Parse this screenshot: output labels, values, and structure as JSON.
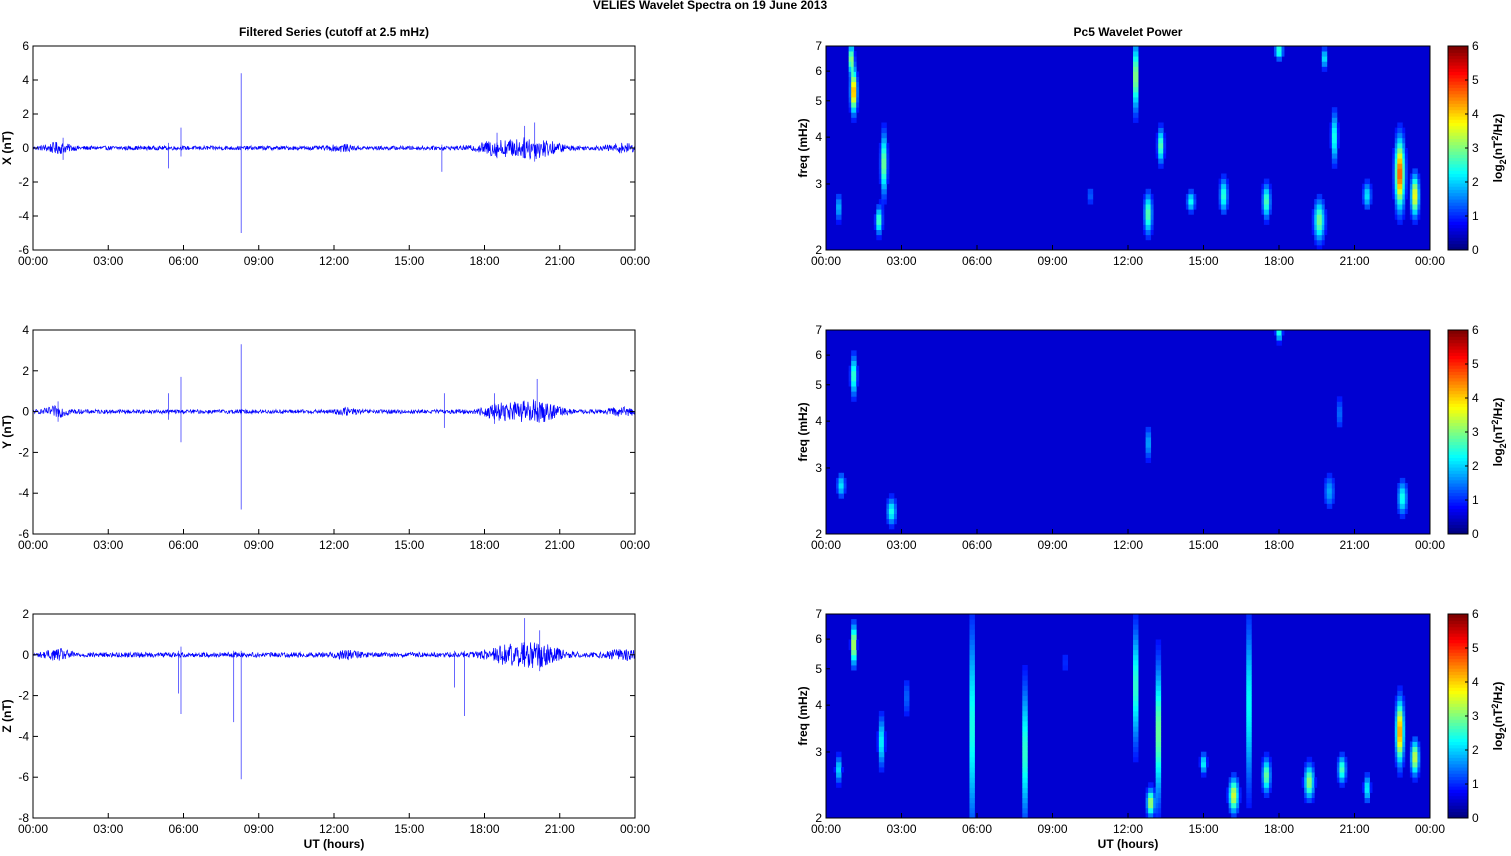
{
  "figure": {
    "title": "VELIES Wavelet Spectra on 19 June      2013",
    "colors": {
      "trace": "#0000ff",
      "axis": "#000000",
      "background": "#ffffff"
    }
  },
  "chart_data": [
    {
      "type": "line",
      "title": "Filtered Series (cutoff at 2.5 mHz)",
      "xlabel": "",
      "ylabel": "X (nT)",
      "x_ticks": [
        "00:00",
        "03:00",
        "06:00",
        "09:00",
        "12:00",
        "15:00",
        "18:00",
        "21:00",
        "00:00"
      ],
      "x_range_hours": [
        0,
        24
      ],
      "ylim": [
        -6,
        6
      ],
      "y_ticks": [
        -6,
        -4,
        -2,
        0,
        2,
        4,
        6
      ],
      "noise_amp": 0.12,
      "bursts": [
        {
          "t": 1.0,
          "w": 0.5,
          "a": 0.25
        },
        {
          "t": 18.4,
          "w": 0.7,
          "a": 0.35
        },
        {
          "t": 19.9,
          "w": 1.0,
          "a": 0.55
        },
        {
          "t": 12.3,
          "w": 0.4,
          "a": 0.15
        },
        {
          "t": 23.5,
          "w": 0.6,
          "a": 0.2
        }
      ],
      "spikes": [
        {
          "t": 8.3,
          "lo": -5.0,
          "hi": 4.4
        },
        {
          "t": 5.9,
          "lo": -0.5,
          "hi": 1.2
        },
        {
          "t": 5.4,
          "lo": -1.2,
          "hi": 0.3
        },
        {
          "t": 16.3,
          "lo": -1.4,
          "hi": 0.2
        },
        {
          "t": 1.2,
          "lo": -0.7,
          "hi": 0.6
        },
        {
          "t": 20.0,
          "lo": -0.8,
          "hi": 1.5
        },
        {
          "t": 19.6,
          "lo": -0.6,
          "hi": 1.3
        },
        {
          "t": 18.5,
          "lo": -0.6,
          "hi": 0.9
        }
      ]
    },
    {
      "type": "heatmap",
      "title": "Pc5 Wavelet Power",
      "xlabel": "",
      "ylabel": "freq (mHz)",
      "x_ticks": [
        "00:00",
        "03:00",
        "06:00",
        "09:00",
        "12:00",
        "15:00",
        "18:00",
        "21:00",
        "00:00"
      ],
      "x_range_hours": [
        0,
        24
      ],
      "y_scale": "log",
      "ylim": [
        2,
        7
      ],
      "y_ticks": [
        2,
        3,
        4,
        5,
        6,
        7
      ],
      "colorbar": {
        "label": "log2(nT2/Hz)",
        "range": [
          0,
          6
        ],
        "ticks": [
          0,
          1,
          2,
          3,
          4,
          5,
          6
        ]
      },
      "blobs": [
        {
          "t": 1.1,
          "f": 5.3,
          "dt": 0.12,
          "df": 0.12,
          "p": 4.3
        },
        {
          "t": 1.0,
          "f": 6.5,
          "dt": 0.1,
          "df": 0.08,
          "p": 3.0
        },
        {
          "t": 2.3,
          "f": 3.4,
          "dt": 0.12,
          "df": 0.18,
          "p": 2.8
        },
        {
          "t": 2.1,
          "f": 2.4,
          "dt": 0.12,
          "df": 0.08,
          "p": 2.5
        },
        {
          "t": 0.5,
          "f": 2.6,
          "dt": 0.12,
          "df": 0.08,
          "p": 1.5
        },
        {
          "t": 12.3,
          "f": 5.8,
          "dt": 0.1,
          "df": 0.2,
          "p": 3.2
        },
        {
          "t": 12.8,
          "f": 2.5,
          "dt": 0.15,
          "df": 0.12,
          "p": 2.5
        },
        {
          "t": 13.3,
          "f": 3.8,
          "dt": 0.12,
          "df": 0.1,
          "p": 2.6
        },
        {
          "t": 14.5,
          "f": 2.7,
          "dt": 0.15,
          "df": 0.06,
          "p": 2.0
        },
        {
          "t": 15.8,
          "f": 2.8,
          "dt": 0.15,
          "df": 0.1,
          "p": 2.2
        },
        {
          "t": 17.5,
          "f": 2.7,
          "dt": 0.15,
          "df": 0.1,
          "p": 2.4
        },
        {
          "t": 19.6,
          "f": 2.4,
          "dt": 0.2,
          "df": 0.12,
          "p": 2.6
        },
        {
          "t": 20.2,
          "f": 4.0,
          "dt": 0.12,
          "df": 0.15,
          "p": 2.2
        },
        {
          "t": 18.0,
          "f": 6.8,
          "dt": 0.15,
          "df": 0.05,
          "p": 2.3
        },
        {
          "t": 19.8,
          "f": 6.5,
          "dt": 0.1,
          "df": 0.06,
          "p": 2.0
        },
        {
          "t": 22.8,
          "f": 3.2,
          "dt": 0.18,
          "df": 0.2,
          "p": 4.5
        },
        {
          "t": 23.4,
          "f": 2.8,
          "dt": 0.15,
          "df": 0.12,
          "p": 3.5
        },
        {
          "t": 10.5,
          "f": 2.8,
          "dt": 0.1,
          "df": 0.06,
          "p": 1.0
        },
        {
          "t": 21.5,
          "f": 2.8,
          "dt": 0.15,
          "df": 0.08,
          "p": 1.8
        }
      ]
    },
    {
      "type": "line",
      "title": "",
      "xlabel": "",
      "ylabel": "Y (nT)",
      "x_ticks": [
        "00:00",
        "03:00",
        "06:00",
        "09:00",
        "12:00",
        "15:00",
        "18:00",
        "21:00",
        "00:00"
      ],
      "x_range_hours": [
        0,
        24
      ],
      "ylim": [
        -6,
        4
      ],
      "y_ticks": [
        -6,
        -4,
        -2,
        0,
        2,
        4
      ],
      "noise_amp": 0.1,
      "bursts": [
        {
          "t": 1.0,
          "w": 0.5,
          "a": 0.2
        },
        {
          "t": 18.6,
          "w": 0.7,
          "a": 0.3
        },
        {
          "t": 20.0,
          "w": 0.9,
          "a": 0.5
        },
        {
          "t": 12.5,
          "w": 0.4,
          "a": 0.12
        },
        {
          "t": 23.5,
          "w": 0.6,
          "a": 0.15
        }
      ],
      "spikes": [
        {
          "t": 8.3,
          "lo": -4.8,
          "hi": 3.3
        },
        {
          "t": 5.9,
          "lo": -1.5,
          "hi": 1.7
        },
        {
          "t": 5.4,
          "lo": -0.4,
          "hi": 0.9
        },
        {
          "t": 16.4,
          "lo": -0.8,
          "hi": 0.9
        },
        {
          "t": 18.4,
          "lo": -0.6,
          "hi": 0.9
        },
        {
          "t": 20.1,
          "lo": -0.5,
          "hi": 1.6
        },
        {
          "t": 1.0,
          "lo": -0.5,
          "hi": 0.5
        }
      ]
    },
    {
      "type": "heatmap",
      "title": "",
      "xlabel": "",
      "ylabel": "freq (mHz)",
      "x_ticks": [
        "00:00",
        "03:00",
        "06:00",
        "09:00",
        "12:00",
        "15:00",
        "18:00",
        "21:00",
        "00:00"
      ],
      "x_range_hours": [
        0,
        24
      ],
      "y_scale": "log",
      "ylim": [
        2,
        7
      ],
      "y_ticks": [
        2,
        3,
        4,
        5,
        6,
        7
      ],
      "colorbar": {
        "label": "log2(nT2/Hz)",
        "range": [
          0,
          6
        ],
        "ticks": [
          0,
          1,
          2,
          3,
          4,
          5,
          6
        ]
      },
      "blobs": [
        {
          "t": 1.1,
          "f": 5.3,
          "dt": 0.12,
          "df": 0.12,
          "p": 2.4
        },
        {
          "t": 0.6,
          "f": 2.7,
          "dt": 0.15,
          "df": 0.07,
          "p": 1.8
        },
        {
          "t": 2.6,
          "f": 2.3,
          "dt": 0.18,
          "df": 0.08,
          "p": 2.0
        },
        {
          "t": 12.8,
          "f": 3.5,
          "dt": 0.1,
          "df": 0.1,
          "p": 1.5
        },
        {
          "t": 18.0,
          "f": 6.9,
          "dt": 0.12,
          "df": 0.05,
          "p": 2.2
        },
        {
          "t": 20.0,
          "f": 2.6,
          "dt": 0.2,
          "df": 0.1,
          "p": 1.3
        },
        {
          "t": 22.9,
          "f": 2.5,
          "dt": 0.18,
          "df": 0.1,
          "p": 2.0
        },
        {
          "t": 20.4,
          "f": 4.2,
          "dt": 0.1,
          "df": 0.1,
          "p": 1.1
        }
      ]
    },
    {
      "type": "line",
      "title": "",
      "xlabel": "UT (hours)",
      "ylabel": "Z (nT)",
      "x_ticks": [
        "00:00",
        "03:00",
        "06:00",
        "09:00",
        "12:00",
        "15:00",
        "18:00",
        "21:00",
        "00:00"
      ],
      "x_range_hours": [
        0,
        24
      ],
      "ylim": [
        -8,
        2
      ],
      "y_ticks": [
        -8,
        -6,
        -4,
        -2,
        0,
        2
      ],
      "noise_amp": 0.12,
      "bursts": [
        {
          "t": 1.0,
          "w": 0.5,
          "a": 0.2
        },
        {
          "t": 18.8,
          "w": 0.8,
          "a": 0.35
        },
        {
          "t": 20.1,
          "w": 0.9,
          "a": 0.5
        },
        {
          "t": 12.5,
          "w": 0.5,
          "a": 0.15
        },
        {
          "t": 23.5,
          "w": 0.6,
          "a": 0.2
        }
      ],
      "spikes": [
        {
          "t": 8.3,
          "lo": -6.1,
          "hi": 0.2
        },
        {
          "t": 8.0,
          "lo": -3.3,
          "hi": 0.2
        },
        {
          "t": 5.9,
          "lo": -2.9,
          "hi": 0.4
        },
        {
          "t": 5.8,
          "lo": -1.9,
          "hi": 0.2
        },
        {
          "t": 17.2,
          "lo": -3.0,
          "hi": 0.2
        },
        {
          "t": 16.8,
          "lo": -1.6,
          "hi": 0.2
        },
        {
          "t": 19.6,
          "lo": -0.6,
          "hi": 1.8
        },
        {
          "t": 20.2,
          "lo": -0.8,
          "hi": 1.2
        }
      ]
    },
    {
      "type": "heatmap",
      "title": "",
      "xlabel": "UT (hours)",
      "ylabel": "freq (mHz)",
      "x_ticks": [
        "00:00",
        "03:00",
        "06:00",
        "09:00",
        "12:00",
        "15:00",
        "18:00",
        "21:00",
        "00:00"
      ],
      "x_range_hours": [
        0,
        24
      ],
      "y_scale": "log",
      "ylim": [
        2,
        7
      ],
      "y_ticks": [
        2,
        3,
        4,
        5,
        6,
        7
      ],
      "colorbar": {
        "label": "log2(nT2/Hz)",
        "range": [
          0,
          6
        ],
        "ticks": [
          0,
          1,
          2,
          3,
          4,
          5,
          6
        ]
      },
      "blobs": [
        {
          "t": 1.1,
          "f": 5.8,
          "dt": 0.1,
          "df": 0.12,
          "p": 3.5
        },
        {
          "t": 0.5,
          "f": 2.7,
          "dt": 0.12,
          "df": 0.08,
          "p": 1.8
        },
        {
          "t": 2.2,
          "f": 3.2,
          "dt": 0.12,
          "df": 0.15,
          "p": 2.0
        },
        {
          "t": 5.8,
          "f": 3.5,
          "dt": 0.06,
          "df": 0.6,
          "p": 3.8
        },
        {
          "t": 7.9,
          "f": 3.0,
          "dt": 0.08,
          "df": 0.4,
          "p": 3.0
        },
        {
          "t": 12.3,
          "f": 4.5,
          "dt": 0.08,
          "df": 0.35,
          "p": 3.0
        },
        {
          "t": 13.2,
          "f": 3.4,
          "dt": 0.08,
          "df": 0.4,
          "p": 3.5
        },
        {
          "t": 12.9,
          "f": 2.2,
          "dt": 0.15,
          "df": 0.08,
          "p": 3.0
        },
        {
          "t": 16.8,
          "f": 4.0,
          "dt": 0.06,
          "df": 0.5,
          "p": 3.5
        },
        {
          "t": 16.2,
          "f": 2.3,
          "dt": 0.18,
          "df": 0.1,
          "p": 3.2
        },
        {
          "t": 15.0,
          "f": 2.8,
          "dt": 0.12,
          "df": 0.06,
          "p": 2.0
        },
        {
          "t": 17.5,
          "f": 2.6,
          "dt": 0.15,
          "df": 0.1,
          "p": 2.6
        },
        {
          "t": 19.2,
          "f": 2.5,
          "dt": 0.18,
          "df": 0.1,
          "p": 2.8
        },
        {
          "t": 20.5,
          "f": 2.7,
          "dt": 0.15,
          "df": 0.08,
          "p": 2.4
        },
        {
          "t": 22.8,
          "f": 3.4,
          "dt": 0.15,
          "df": 0.18,
          "p": 4.2
        },
        {
          "t": 23.4,
          "f": 2.9,
          "dt": 0.15,
          "df": 0.1,
          "p": 3.2
        },
        {
          "t": 21.5,
          "f": 2.4,
          "dt": 0.12,
          "df": 0.08,
          "p": 2.0
        },
        {
          "t": 3.2,
          "f": 4.2,
          "dt": 0.08,
          "df": 0.12,
          "p": 1.2
        },
        {
          "t": 9.5,
          "f": 5.2,
          "dt": 0.06,
          "df": 0.1,
          "p": 1.0
        }
      ]
    }
  ]
}
